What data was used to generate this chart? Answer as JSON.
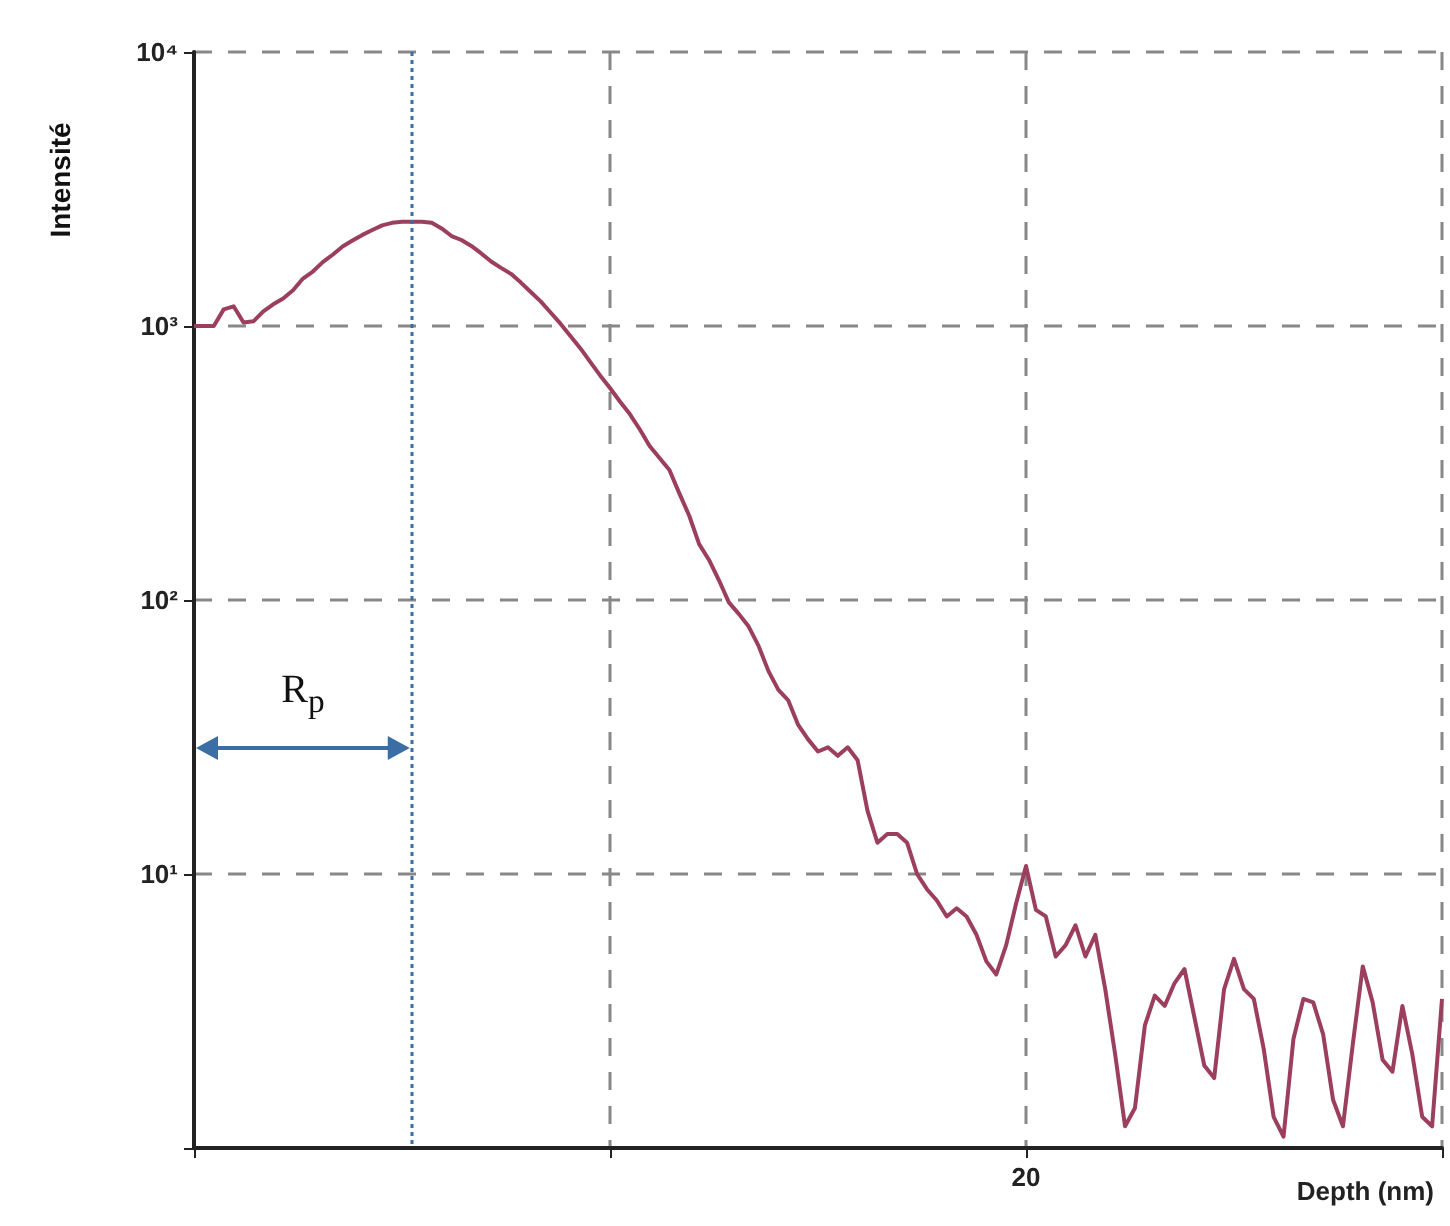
{
  "chart_data": {
    "type": "line",
    "xlabel": "Depth (nm)",
    "ylabel": "Intensité",
    "categories": [
      null,
      null,
      null,
      null,
      null,
      null,
      null,
      null,
      null,
      null,
      null,
      null,
      null,
      null,
      null,
      null,
      null,
      null,
      null,
      null,
      null,
      null,
      null,
      null,
      null,
      null,
      null,
      null,
      null,
      null,
      null,
      null,
      null,
      null,
      null,
      null,
      null,
      null,
      null,
      null,
      null,
      null,
      null,
      null,
      null,
      null,
      null,
      null,
      null,
      null,
      null,
      null,
      null,
      null,
      null,
      null,
      null,
      null,
      null,
      null,
      null,
      null,
      null,
      null,
      null,
      null,
      null,
      null,
      null,
      null,
      null,
      null,
      null,
      null,
      null,
      null,
      null,
      null,
      null,
      null,
      null,
      null,
      null,
      null,
      "20",
      null,
      null,
      null,
      null,
      null,
      null,
      null,
      null,
      null,
      null,
      null,
      null,
      null,
      null,
      null,
      null,
      null,
      null,
      null,
      null,
      null,
      null,
      null,
      null,
      null,
      null,
      null,
      null,
      null,
      null,
      null,
      null,
      null,
      null,
      null,
      null,
      null,
      null,
      null,
      null,
      null,
      null
    ],
    "series": [
      {
        "color": "#9c3f5e",
        "values": [
          1000,
          1000,
          1000,
          1150,
          1180,
          1030,
          1040,
          1130,
          1200,
          1260,
          1350,
          1490,
          1580,
          1710,
          1820,
          1950,
          2050,
          2150,
          2240,
          2330,
          2380,
          2400,
          2400,
          2400,
          2380,
          2270,
          2130,
          2060,
          1960,
          1840,
          1720,
          1630,
          1550,
          1440,
          1330,
          1230,
          1120,
          1020,
          920,
          830,
          740,
          660,
          594,
          530,
          477,
          420,
          365,
          330,
          298,
          245,
          203,
          160,
          140,
          118,
          98,
          89,
          80,
          68,
          55,
          47,
          43,
          35,
          31,
          28,
          29,
          27,
          29,
          26,
          17,
          13,
          14,
          14,
          13,
          10,
          8.8,
          8.0,
          7.0,
          7.5,
          7.0,
          6.0,
          4.8,
          4.3,
          5.5,
          7.8,
          10.7,
          7.4,
          7.0,
          5.0,
          5.5,
          6.5,
          5.0,
          6.0,
          3.8,
          2.2,
          1.2,
          1.4,
          2.8,
          3.6,
          3.3,
          4.0,
          4.5,
          3.0,
          2.0,
          1.8,
          3.8,
          4.9,
          3.8,
          3.5,
          2.3,
          1.3,
          1.1,
          2.5,
          3.5,
          3.4,
          2.6,
          1.5,
          1.2,
          2.4,
          4.6,
          3.4,
          2.1,
          1.9,
          3.3,
          2.2,
          1.3,
          1.2,
          3.5
        ]
      }
    ],
    "ylim": [
      1,
      10000
    ],
    "yticks": [
      {
        "value": 1,
        "label": null
      },
      {
        "value": 10,
        "label": "10¹"
      },
      {
        "value": 100,
        "label": "10²"
      },
      {
        "value": 1000,
        "label": "10³"
      },
      {
        "value": 10000,
        "label": "10⁴"
      }
    ],
    "log": "y",
    "grid": true,
    "marker": "none",
    "line_style": "solid",
    "annotations": [
      "R$_{p}$"
    ]
  }
}
